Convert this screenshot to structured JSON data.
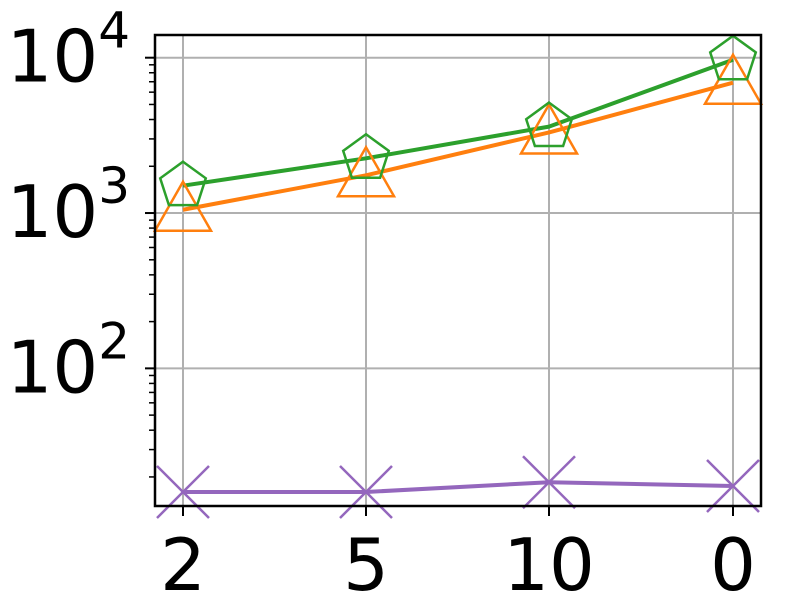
{
  "chart_data": {
    "type": "line",
    "title": "",
    "xlabel": "",
    "ylabel": "",
    "categories": [
      "2",
      "5",
      "10",
      "0"
    ],
    "y_scale": "log",
    "ylim": [
      13,
      14000
    ],
    "grid": true,
    "legend": "none",
    "y_ticks": [
      {
        "value": 100,
        "base": "10",
        "exp": "2"
      },
      {
        "value": 1000,
        "base": "10",
        "exp": "3"
      },
      {
        "value": 10000,
        "base": "10",
        "exp": "4"
      }
    ],
    "series": [
      {
        "color": "#ff7f0e",
        "marker": "triangle-up-icon",
        "values": [
          1050,
          1750,
          3300,
          6900
        ]
      },
      {
        "color": "#2ca02c",
        "marker": "pentagon-icon",
        "values": [
          1500,
          2250,
          3600,
          9700
        ]
      },
      {
        "color": "#9467bd",
        "marker": "x-icon",
        "values": [
          16,
          16,
          18.5,
          17.5
        ]
      }
    ]
  }
}
